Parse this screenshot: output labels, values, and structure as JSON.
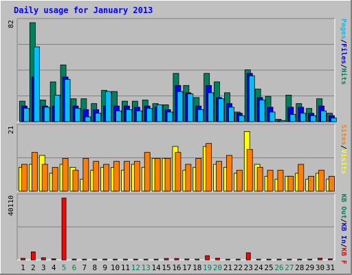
{
  "title": "Daily usage for January 2013",
  "colors": {
    "background": "#C0C0C0",
    "panel": "#BDBDBD",
    "title": "#0000FF",
    "hits": "#00805C",
    "files": "#0000FF",
    "pages": "#00C0FF",
    "visits": "#FFFF00",
    "sites": "#FF8000",
    "kb_out": "#00805C",
    "kb_in": "#0000FF",
    "kb_f": "#FF0000",
    "weekend_day": "#00805C",
    "weekday": "#000000"
  },
  "chart_data": [
    {
      "type": "bar",
      "panel": "hits-files-pages",
      "categories": [
        "1",
        "2",
        "3",
        "4",
        "5",
        "6",
        "7",
        "8",
        "9",
        "10",
        "11",
        "12",
        "13",
        "14",
        "15",
        "16",
        "17",
        "18",
        "19",
        "20",
        "21",
        "22",
        "23",
        "24",
        "25",
        "26",
        "27",
        "28",
        "29",
        "30",
        "31"
      ],
      "weekend_days": [
        "5",
        "6",
        "12",
        "13",
        "19",
        "20",
        "26",
        "27"
      ],
      "scale_label": "82",
      "ylim": [
        0,
        82
      ],
      "legend": [
        {
          "label": "Hits",
          "color": "#00805C"
        },
        {
          "label": "Files",
          "color": "#0000FF"
        },
        {
          "label": "Pages",
          "color": "#00C0FF"
        }
      ],
      "legend_separator": "/",
      "series": [
        {
          "name": "Hits",
          "values": [
            17,
            82,
            18,
            33,
            47,
            19,
            19,
            15,
            26,
            25,
            17,
            17,
            18,
            15,
            14,
            40,
            30,
            20,
            40,
            33,
            24,
            8,
            43,
            27,
            21,
            2,
            22,
            15,
            11,
            19,
            7
          ]
        },
        {
          "name": "Files",
          "values": [
            13,
            37,
            13,
            13,
            37,
            13,
            10,
            10,
            13,
            13,
            13,
            12,
            13,
            12,
            10,
            30,
            24,
            13,
            30,
            20,
            15,
            7,
            40,
            20,
            12,
            1,
            12,
            12,
            7,
            13,
            5
          ]
        },
        {
          "name": "Pages",
          "values": [
            11,
            62,
            12,
            22,
            35,
            11,
            4,
            7,
            25,
            9,
            10,
            9,
            11,
            14,
            8,
            25,
            23,
            10,
            24,
            19,
            12,
            5,
            38,
            18,
            8,
            1,
            6,
            7,
            5,
            9,
            3
          ]
        }
      ]
    },
    {
      "type": "bar",
      "panel": "visits-sites",
      "categories": [
        "1",
        "2",
        "3",
        "4",
        "5",
        "6",
        "7",
        "8",
        "9",
        "10",
        "11",
        "12",
        "13",
        "14",
        "15",
        "16",
        "17",
        "18",
        "19",
        "20",
        "21",
        "22",
        "23",
        "24",
        "25",
        "26",
        "27",
        "28",
        "29",
        "30",
        "31"
      ],
      "scale_label": "21",
      "ylim": [
        0,
        21
      ],
      "legend": [
        {
          "label": "Visits",
          "color": "#FFFF00"
        },
        {
          "label": "Sites",
          "color": "#FF8000"
        }
      ],
      "legend_separator": "/",
      "series": [
        {
          "name": "Visits",
          "values": [
            8,
            9,
            12,
            6,
            9,
            8,
            4,
            7,
            8,
            8,
            7,
            9,
            8,
            11,
            11,
            15,
            7,
            8,
            15,
            9,
            8,
            6,
            20,
            9,
            5,
            4,
            5,
            6,
            4,
            6,
            4
          ]
        },
        {
          "name": "Sites",
          "values": [
            9,
            13,
            9,
            8,
            11,
            7,
            11,
            10,
            9,
            10,
            10,
            10,
            13,
            11,
            11,
            13,
            9,
            11,
            16,
            10,
            12,
            7,
            14,
            8,
            7,
            7,
            5,
            9,
            5,
            7,
            5
          ]
        }
      ]
    },
    {
      "type": "bar",
      "panel": "kb",
      "categories": [
        "1",
        "2",
        "3",
        "4",
        "5",
        "6",
        "7",
        "8",
        "9",
        "10",
        "11",
        "12",
        "13",
        "14",
        "15",
        "16",
        "17",
        "18",
        "19",
        "20",
        "21",
        "22",
        "23",
        "24",
        "25",
        "26",
        "27",
        "28",
        "29",
        "30",
        "31"
      ],
      "scale_label": "40110",
      "ylim": [
        0,
        40110
      ],
      "legend": [
        {
          "label": "KB F",
          "color": "#FF0000"
        },
        {
          "label": "KB In",
          "color": "#0000FF"
        },
        {
          "label": "KB Out",
          "color": "#00805C"
        }
      ],
      "legend_separator": "/",
      "series": [
        {
          "name": "KB F",
          "values": [
            1000,
            5200,
            1400,
            700,
            40110,
            500,
            400,
            400,
            500,
            400,
            400,
            400,
            400,
            400,
            900,
            900,
            600,
            500,
            2700,
            1100,
            400,
            300,
            4600,
            400,
            400,
            300,
            300,
            300,
            400,
            1100,
            700
          ]
        }
      ]
    }
  ]
}
